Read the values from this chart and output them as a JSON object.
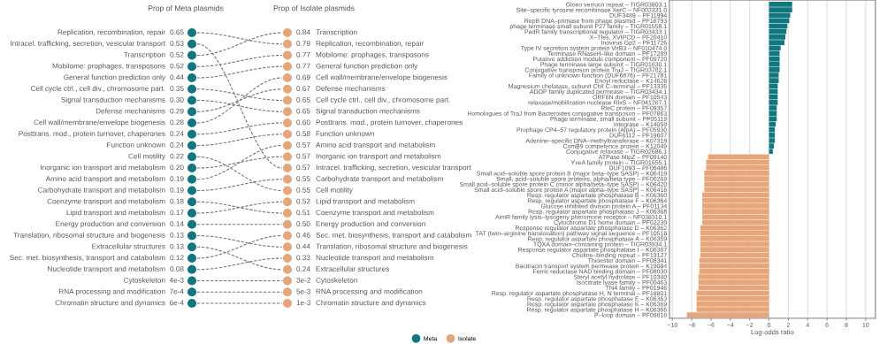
{
  "chart_data": [
    {
      "type": "other",
      "ylabel": "Prop of Meta plasmids",
      "y2label": "Prop of Isolate plasmids",
      "categories": [
        "Replication, recombination, repair",
        "Intracel. trafficking, secretion, vesicular transport",
        "Transcription",
        "Mobilome: prophages, transposons",
        "General function prediction only",
        "Cell cycle ctrl., cell div., chromosome part.",
        "Signal transduction mechanisms",
        "Defense mechanisms",
        "Cell wall/membrane/envelope biogenesis",
        "Posttrans. mod., protein turnover, chaperones",
        "Function unknown",
        "Cell motility",
        "Inorganic ion transport and metabolism",
        "Amino acid transport and metabolism",
        "Carbohydrate transport and metabolism",
        "Coenzyme transport and metabolism",
        "Lipid transport and metabolism",
        "Energy production and conversion",
        "Translation, ribosomal structure and biogenesis",
        "Extracellular structures",
        "Sec. met. biosynthesis, transport and catabolism",
        "Nucleotide transport and metabolism",
        "Cytoskeleton",
        "RNA processing and modification",
        "Chromatin structure and dynamics"
      ],
      "y2_categories": [
        "Transcription",
        "Replication, recombination, repair",
        "Mobilome: prophages, transposons",
        "General function prediction only",
        "Cell wall/membrane/envelope biogenesis",
        "Defense mechanisms",
        "Cell cycle ctrl., cell div., chromosome part.",
        "Signal transduction mechanisms",
        "Posttrans. mod., protein turnover, chaperones",
        "Function unknown",
        "Amino acid transport and metabolism",
        "Inorganic ion transport and metabolism",
        "Intracel. trafficking, secretion, vesicular transport",
        "Carbohydrate transport and metabolism",
        "Cell motility",
        "Lipid transport and metabolism",
        "Coenzyme transport and metabolism",
        "Energy production and conversion",
        "Sec. met. biosynthesis, transport and catabolism",
        "Translation, ribosomal structure and biogenesis",
        "Nucleotide transport and metabolism",
        "Extracellular structures",
        "Cytoskeleton",
        "RNA processing and modification",
        "Chromatin structure and dynamics"
      ],
      "series": [
        {
          "color": "#10777f",
          "values": [
            0.65,
            0.53,
            0.52,
            0.52,
            0.44,
            0.35,
            0.3,
            0.29,
            0.28,
            0.24,
            0.24,
            0.22,
            0.2,
            0.19,
            0.19,
            0.18,
            0.17,
            0.14,
            0.13,
            0.13,
            0.12,
            0.08,
            0.004,
            0.0007,
            0.0006
          ],
          "value_labels": [
            "0.65",
            "0.53",
            "0.52",
            "0.52",
            "0.44",
            "0.35",
            "0.30",
            "0.29",
            "0.28",
            "0.24",
            "0.24",
            "0.22",
            "0.20",
            "0.19",
            "0.19",
            "0.18",
            "0.17",
            "0.14",
            "0.13",
            "0.13",
            "0.12",
            "0.08",
            "4e-3",
            "7e-4",
            "6e-4"
          ]
        },
        {
          "color": "#e6a679",
          "axis": "y2",
          "values": [
            0.84,
            0.79,
            0.77,
            0.77,
            0.69,
            0.67,
            0.65,
            0.65,
            0.6,
            0.58,
            0.57,
            0.57,
            0.57,
            0.55,
            0.55,
            0.52,
            0.51,
            0.5,
            0.46,
            0.44,
            0.33,
            0.24,
            0.03,
            0.005,
            0.001
          ],
          "value_labels": [
            "0.84",
            "0.79",
            "0.77",
            "0.77",
            "0.69",
            "0.67",
            "0.65",
            "0.65",
            "0.60",
            "0.58",
            "0.57",
            "0.57",
            "0.57",
            "0.55",
            "0.55",
            "0.52",
            "0.51",
            "0.50",
            "0.46",
            "0.44",
            "0.33",
            "0.24",
            "3e-2",
            "5e-3",
            "1e-3"
          ]
        }
      ]
    },
    {
      "type": "bar",
      "orientation": "horizontal",
      "xlabel": "Log-odds ratio",
      "xlim": [
        -10.3,
        11
      ],
      "xticks": [
        {
          "value": -10,
          "label": "−10"
        },
        {
          "value": -8,
          "label": "−8"
        },
        {
          "value": -6,
          "label": "−6"
        },
        {
          "value": -4,
          "label": "−4"
        },
        {
          "value": -2,
          "label": "−2"
        },
        0,
        2,
        4,
        6,
        8,
        10
      ],
      "grid": "x",
      "legend": "bottom",
      "categories": [
        "Gloeo verruco repeat – TIGR03803.1",
        "Site–specific tyrosine recombinase XerC – NF002331.0",
        "DUF3489 – PF11994",
        "RepB DNA–primase from phage plasmid – PF16793",
        "phage terminase small subunit P27 family – TIGR01558.1",
        "PadR family transcriptional regulator – TIGR03433.1",
        "X–Tfes, XVIPCD – PF20410",
        "Inovirus Gp2 – PF11726",
        "Type IV secretion system protein VirB3 – NF010474.0",
        "Terminase RNaseH–like domain – PF17289",
        "Putative addiction module component – PF09720",
        "Phage terminase large subunit – TIGR01630.1",
        "Conjugative transposon protein TraJ – TIGR03782.1",
        "Family of unknown function (DUF6876) – PF21781",
        "Enoyl reductase – K14628",
        "Magnesium chelatase, subunit ChlI C–terminal – PF13335",
        "ADOP family duplicated permease – TIGR03434.1",
        "ORF6N domain – PF10543",
        "relaxase/mobilization nuclease RlxS – NF041267.1",
        "RteC protein – PF09357",
        "Homologues of TraJ from Bacteroides conjugative transposon – PF07863",
        "Phage terminase, small subunit – PF05119",
        "integrase – K14059",
        "Prophage CP4–57 regulatory protein (AlpA) – PF05930",
        "DUF6112 – PF19607",
        "Adenine–specific DNA–methyltransferase – K07319",
        "ComB9 competence protein – K12049",
        "Conjugative relaxase – TIGR02686.1",
        "ATPase MipZ – PF09140",
        "YxeA family protein – TIGR01655.1",
        "DUF1093 – PF06486",
        "Small acid–soluble spore protein B (major beta–type SASP) – K06419",
        "Small, acid–soluble spore proteins, alpha/beta type – PF00269",
        "Small acid–soluble spore protein C (minor alpha/beta–type SASP) – K06420",
        "Small acid–soluble spore protein A (major alpha–type SASP) – K06418",
        "Resp. regulator aspartate phosphatase B – K06360",
        "Resp. regulator aspartate phosphatase F – K06364",
        "Glucose inhibited division protein A – PF01134",
        "Resp. regulator aspartate phosphatase J – K06368",
        "AimR family lysis–lysogeny pheromone receptor – NF038310.1",
        "Cytochrome D1 heme domain – PF02239",
        "Response regulator aspartate phosphatase D – K06362",
        "TAT (twin–arginine translocation) pathway signal sequence – PF10518",
        "Resp. regulator aspartate phosphatase A – K06359",
        "TQXA domain–containing protein – TIGR03934.1",
        "Response regulator aspartate phosphatase I – K06367",
        "Choline–binding repeat – PF19127",
        "Thioester domain – PF08341",
        "Bacitracin transport system permease protein – K19084",
        "Ferric reductase NAD binding domain – PF08030",
        "Steryl acetyl hydrolase – PF10340",
        "Isocitrate lyase family – PF00463",
        "Thi4 family – PF01946",
        "Resp. regulator aspartate phosphatase H, N terminal – PF18801",
        "Resp. regulator aspartate phosphatase E – K06363",
        "Resp. regulator aspartate phosphatase K – K06369",
        "Resp. regulator aspartate phosphatase H – K06366",
        "P–loop domain – PF09818"
      ],
      "series": [
        {
          "name": "Meta",
          "color": "#10777f",
          "values": [
            2.4,
            2.4,
            2.2,
            2.1,
            1.9,
            1.8,
            1.7,
            1.6,
            1.2,
            1.1,
            1.1,
            1.1,
            1.1,
            1.0,
            1.0,
            0.9,
            0.9,
            0.9,
            0.9,
            0.8,
            0.8,
            0.8,
            0.7,
            0.6,
            0.6,
            0.6,
            0.5,
            0.4,
            null,
            null,
            null,
            null,
            null,
            null,
            null,
            null,
            null,
            null,
            null,
            null,
            null,
            null,
            null,
            null,
            null,
            null,
            null,
            null,
            null,
            null,
            null,
            null,
            null,
            null,
            null,
            null,
            null,
            null
          ]
        },
        {
          "name": "Isolate",
          "color": "#e6a679",
          "values": [
            null,
            null,
            null,
            null,
            null,
            null,
            null,
            null,
            null,
            null,
            null,
            null,
            null,
            null,
            null,
            null,
            null,
            null,
            null,
            null,
            null,
            null,
            null,
            null,
            null,
            null,
            null,
            null,
            -6.3,
            -6.5,
            -6.5,
            -6.7,
            -6.7,
            -6.7,
            -6.7,
            -6.9,
            -6.9,
            -6.9,
            -6.9,
            -6.9,
            -6.9,
            -7.1,
            -7.1,
            -7.1,
            -7.1,
            -7.1,
            -7.1,
            -7.2,
            -7.2,
            -7.2,
            -7.3,
            -7.3,
            -7.3,
            -7.5,
            -7.5,
            -7.5,
            -7.5,
            -8.5
          ]
        }
      ]
    }
  ]
}
